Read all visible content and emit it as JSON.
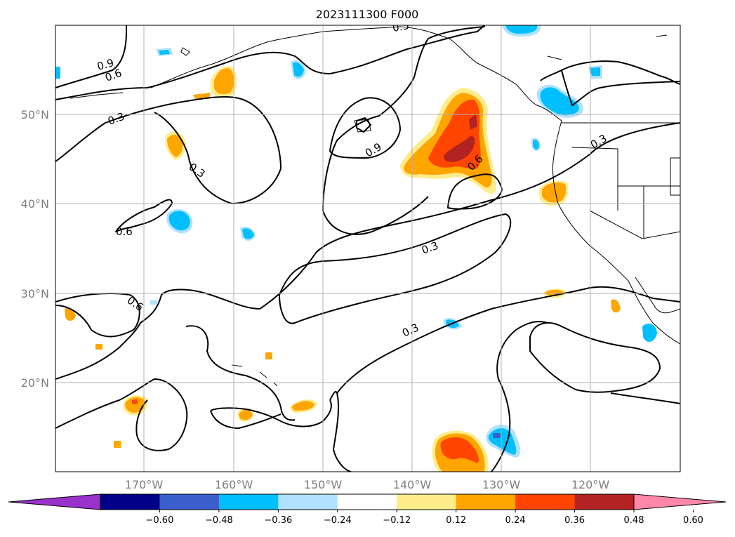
{
  "title": "2023111300 F000",
  "lon_labels": [
    "170°W",
    "160°W",
    "150°W",
    "140°W",
    "130°W",
    "120°W"
  ],
  "lat_labels": [
    "50°N",
    "40°N",
    "30°N",
    "20°N"
  ],
  "contour_labels": {
    "c1": "0.9",
    "c2": "0.6",
    "c3": "0.3",
    "c4": "0.3",
    "c5": "0.9",
    "c6": "0.6",
    "c7": "0.3",
    "c8": "0.6",
    "c9": "0.3",
    "c10": "0.6",
    "c11": "0.3",
    "c12": "0.3"
  },
  "colorbar": {
    "ticks": [
      "−0.60",
      "−0.48",
      "−0.36",
      "−0.24",
      "−0.12",
      "0.12",
      "0.24",
      "0.36",
      "0.48",
      "0.60"
    ],
    "colors": [
      "#9932cc",
      "#00008b",
      "#3a5fcd",
      "#00bfff",
      "#b0e2ff",
      "#ffffff",
      "#ffec8b",
      "#ffa500",
      "#ff4500",
      "#b22222",
      "#ff88aa"
    ]
  }
}
